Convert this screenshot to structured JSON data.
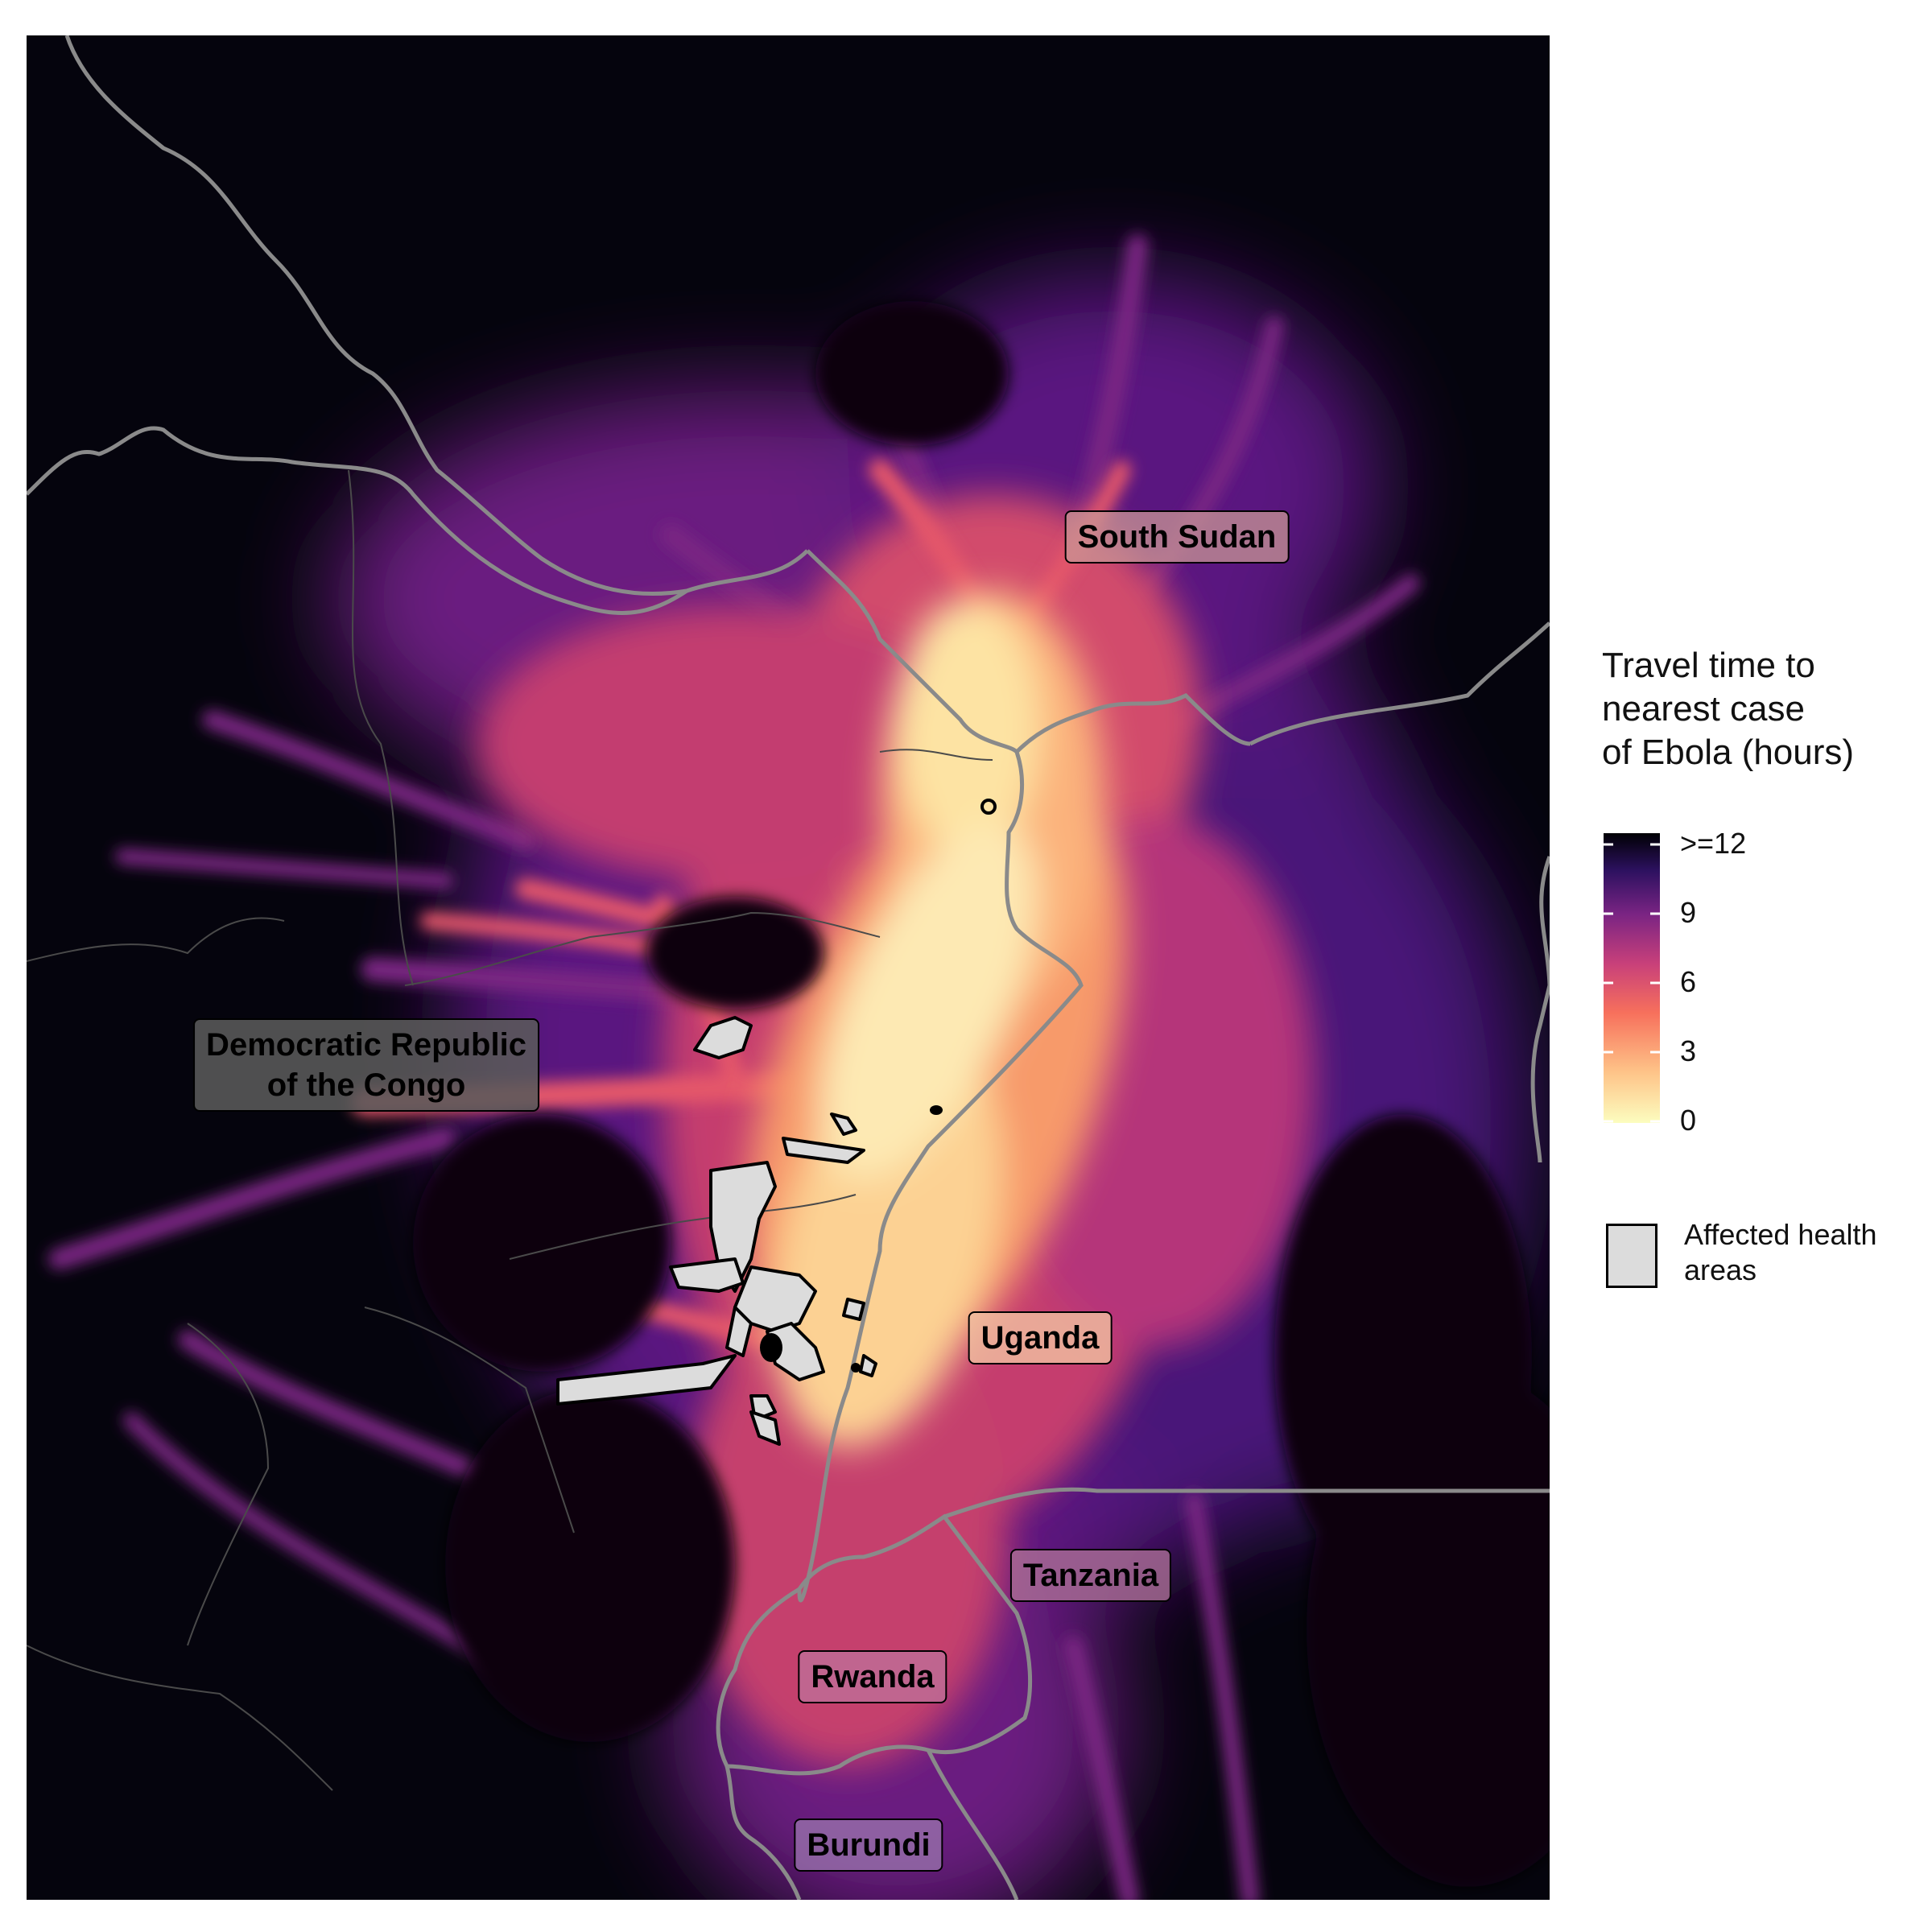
{
  "legend": {
    "title_lines": [
      "Travel time to",
      "nearest case",
      "of Ebola (hours)"
    ],
    "ticks": [
      ">=12",
      "9",
      "6",
      "3",
      "0"
    ],
    "affected_label_lines": [
      "Affected health",
      "areas"
    ],
    "colors": [
      "#fcfdbf",
      "#fd9a6a",
      "#e3546c",
      "#b5367a",
      "#5f187f",
      "#2a0f55",
      "#000004"
    ]
  },
  "countries": {
    "south_sudan": "South Sudan",
    "drc_line1": "Democratic Republic",
    "drc_line2": "of the Congo",
    "uganda": "Uganda",
    "tanzania": "Tanzania",
    "rwanda": "Rwanda",
    "burundi": "Burundi"
  },
  "colors": {
    "background": "#05040d",
    "border": "#8a8a8a",
    "affected_fill": "#dcdcdc"
  }
}
